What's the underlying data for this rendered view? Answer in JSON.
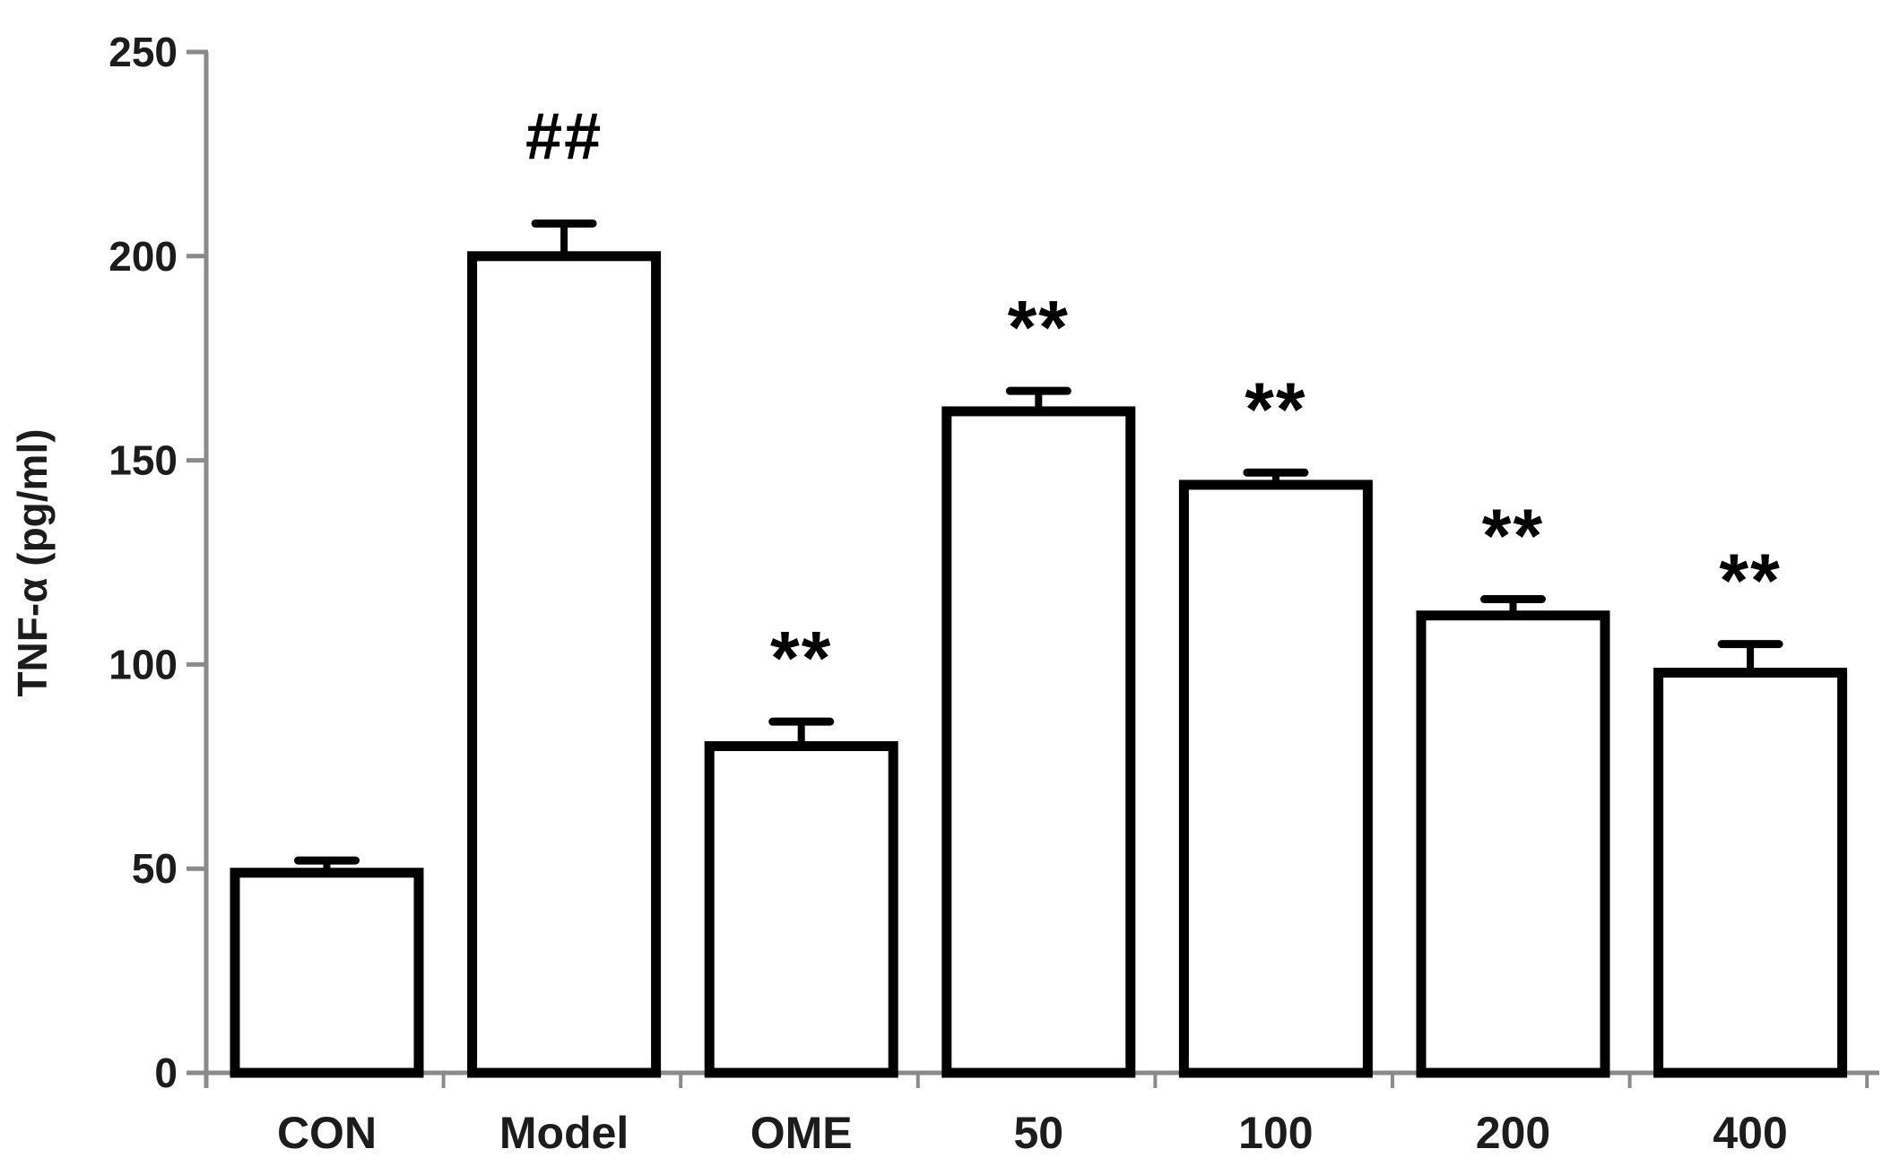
{
  "chart_data": {
    "type": "bar",
    "title": "",
    "ylabel": "TNF-α (pg/ml)",
    "xlabel": "",
    "ylim": [
      0,
      250
    ],
    "yticks": [
      0,
      50,
      100,
      150,
      200,
      250
    ],
    "categories": [
      "CON",
      "Model",
      "OME",
      "50",
      "100",
      "200",
      "400"
    ],
    "values": [
      49,
      200,
      80,
      162,
      144,
      112,
      98
    ],
    "errors": [
      3,
      8,
      6,
      5,
      3,
      4,
      7
    ],
    "annotations": [
      "",
      "##",
      "**",
      "**",
      "**",
      "**",
      "**"
    ],
    "legend_position": "none",
    "grid": false,
    "colors": {
      "bar_fill": "#ffffff",
      "bar_border": "#000000",
      "error_bar": "#000000",
      "axis_line": "#8a8a8a",
      "tick_mark": "#8a8a8a",
      "text": "#1c1c1c",
      "annotation": "#000000",
      "background": "#ffffff"
    }
  }
}
